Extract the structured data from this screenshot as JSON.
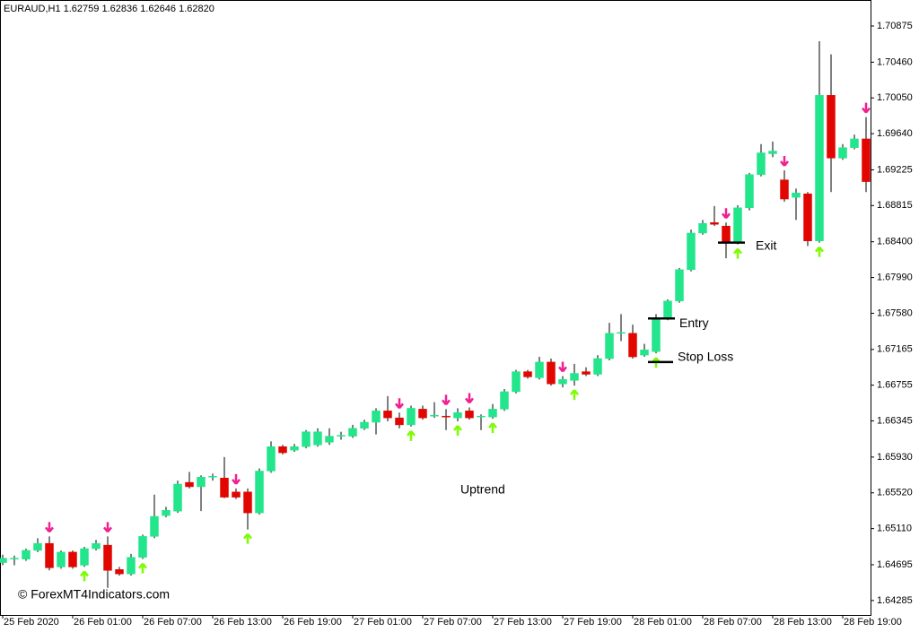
{
  "chart_data": {
    "type": "candlestick",
    "title": "EURAUD,H1  1.62759 1.62836 1.62646 1.62820",
    "categories": [
      "25 Feb 2020",
      null,
      null,
      null,
      null,
      null,
      "26 Feb 01:00",
      null,
      null,
      null,
      null,
      null,
      "26 Feb 07:00",
      null,
      null,
      null,
      null,
      null,
      "26 Feb 13:00",
      null,
      null,
      null,
      null,
      null,
      "26 Feb 19:00",
      null,
      null,
      null,
      null,
      null,
      "27 Feb 01:00",
      null,
      null,
      null,
      null,
      null,
      "27 Feb 07:00",
      null,
      null,
      null,
      null,
      null,
      "27 Feb 13:00",
      null,
      null,
      null,
      null,
      null,
      "27 Feb 19:00",
      null,
      null,
      null,
      null,
      null,
      "28 Feb 01:00",
      null,
      null,
      null,
      null,
      null,
      "28 Feb 07:00",
      null,
      null,
      null,
      null,
      null,
      "28 Feb 13:00",
      null,
      null,
      null,
      null,
      null,
      "28 Feb 19:00",
      null,
      null
    ],
    "open": [
      1.6472,
      1.6476,
      1.6476,
      1.6486,
      1.6494,
      1.6467,
      1.6484,
      1.6469,
      1.6488,
      1.6492,
      1.6464,
      1.6459,
      1.6478,
      1.6502,
      1.6526,
      1.6531,
      1.6564,
      1.6559,
      1.657,
      1.6569,
      1.6553,
      1.6553,
      1.6529,
      1.6577,
      1.6605,
      1.6601,
      1.6605,
      1.6607,
      1.661,
      1.6617,
      1.6617,
      1.6626,
      1.6633,
      1.6646,
      1.6638,
      1.663,
      1.6648,
      1.664,
      1.664,
      1.6638,
      1.6646,
      1.6639,
      1.6639,
      1.6648,
      1.6668,
      1.6691,
      1.6684,
      1.6702,
      1.6677,
      1.6681,
      1.6691,
      1.6688,
      1.6706,
      1.6735,
      1.6735,
      1.671,
      1.6714,
      1.6752,
      1.6772,
      1.6808,
      1.685,
      1.6862,
      1.6858,
      1.6839,
      1.6879,
      1.6917,
      1.6941,
      1.6911,
      1.6891,
      1.6895,
      1.6841,
      1.7008,
      1.6936,
      1.6948,
      1.6958
    ],
    "high": [
      1.6481,
      1.648,
      1.6488,
      1.65,
      1.6502,
      1.6486,
      1.6486,
      1.649,
      1.6498,
      1.6502,
      1.6467,
      1.6482,
      1.6504,
      1.655,
      1.6536,
      1.6566,
      1.6576,
      1.6572,
      1.6574,
      1.6593,
      1.6557,
      1.6557,
      1.658,
      1.6611,
      1.6607,
      1.6608,
      1.6624,
      1.6626,
      1.6626,
      1.6622,
      1.663,
      1.6636,
      1.6649,
      1.6663,
      1.6644,
      1.6652,
      1.6652,
      1.6656,
      1.6648,
      1.6649,
      1.665,
      1.6642,
      1.6654,
      1.6671,
      1.6693,
      1.6693,
      1.6708,
      1.6706,
      1.6686,
      1.67,
      1.6696,
      1.671,
      1.6747,
      1.6757,
      1.6745,
      1.6723,
      1.6757,
      1.6774,
      1.681,
      1.6854,
      1.6865,
      1.6881,
      1.6862,
      1.6882,
      1.6919,
      1.6952,
      1.6955,
      1.6922,
      1.6901,
      1.6897,
      1.707,
      1.7055,
      1.6952,
      1.6963,
      1.6983
    ],
    "low": [
      1.6469,
      1.6469,
      1.6474,
      1.6484,
      1.6463,
      1.6465,
      1.6465,
      1.6467,
      1.6486,
      1.6443,
      1.6457,
      1.6457,
      1.6476,
      1.65,
      1.6524,
      1.6529,
      1.6557,
      1.6531,
      1.6566,
      1.6546,
      1.6545,
      1.651,
      1.6527,
      1.6575,
      1.6596,
      1.6599,
      1.6603,
      1.6605,
      1.6607,
      1.6613,
      1.6615,
      1.6624,
      1.6619,
      1.6634,
      1.6626,
      1.6628,
      1.6636,
      1.6638,
      1.6624,
      1.6634,
      1.6636,
      1.6624,
      1.6637,
      1.6646,
      1.6666,
      1.6683,
      1.6682,
      1.6675,
      1.6673,
      1.6675,
      1.6686,
      1.6686,
      1.6704,
      1.6726,
      1.6706,
      1.6708,
      1.6712,
      1.675,
      1.677,
      1.6806,
      1.6848,
      1.6858,
      1.6821,
      1.6837,
      1.6876,
      1.6915,
      1.6937,
      1.6886,
      1.6865,
      1.6835,
      1.6839,
      1.6897,
      1.6934,
      1.6946,
      1.6897
    ],
    "close": [
      1.6477,
      1.6477,
      1.6486,
      1.6494,
      1.6466,
      1.6484,
      1.6467,
      1.6488,
      1.6494,
      1.6463,
      1.6459,
      1.6478,
      1.6502,
      1.6525,
      1.6532,
      1.6562,
      1.6559,
      1.657,
      1.6571,
      1.6547,
      1.6547,
      1.6529,
      1.6577,
      1.6605,
      1.6598,
      1.6605,
      1.6622,
      1.6622,
      1.6617,
      1.6618,
      1.6626,
      1.6633,
      1.6646,
      1.6638,
      1.663,
      1.6649,
      1.6638,
      1.6641,
      1.6639,
      1.6644,
      1.6638,
      1.664,
      1.6648,
      1.6668,
      1.6691,
      1.6685,
      1.6702,
      1.6677,
      1.6682,
      1.6689,
      1.6688,
      1.6706,
      1.6735,
      1.6736,
      1.6708,
      1.6716,
      1.6752,
      1.6772,
      1.6808,
      1.685,
      1.6861,
      1.686,
      1.6839,
      1.6879,
      1.6917,
      1.6942,
      1.6944,
      1.6889,
      1.6896,
      1.6841,
      1.7008,
      1.6936,
      1.6948,
      1.6958,
      1.6909
    ],
    "up_color": "#22e58c",
    "down_color": "#e10600",
    "buy_signals": [
      7,
      12,
      21,
      35,
      39,
      42,
      49,
      56,
      63,
      70
    ],
    "sell_signals": [
      4,
      9,
      20,
      34,
      38,
      40,
      48,
      62,
      67,
      74
    ],
    "buy_color": "#7cfc00",
    "sell_color": "#f0208f",
    "levels": [
      {
        "label": "Entry",
        "value": 1.6752
      },
      {
        "label": "Stop Loss",
        "value": 1.6702
      },
      {
        "label": "Exit",
        "value": 1.6839
      }
    ],
    "annotations": [
      "Uptrend",
      "© ForexMT4Indicators.com"
    ],
    "ylim": [
      1.64119,
      1.71091
    ],
    "yticks": [
      1.64285,
      1.64695,
      {
        "value": 1.6511,
        "label": "1.65110"
      },
      {
        "value": 1.6552,
        "label": "1.65520"
      },
      {
        "value": 1.6593,
        "label": "1.65930"
      },
      1.66345,
      1.66755,
      1.67165,
      {
        "value": 1.6758,
        "label": "1.67580"
      },
      {
        "value": 1.6799,
        "label": "1.67990"
      },
      {
        "value": 1.684,
        "label": "1.68400"
      },
      1.68815,
      1.69225,
      {
        "value": 1.6964,
        "label": "1.69640"
      },
      {
        "value": 1.7005,
        "label": "1.70050"
      },
      {
        "value": 1.7046,
        "label": "1.70460"
      },
      1.70875
    ]
  }
}
